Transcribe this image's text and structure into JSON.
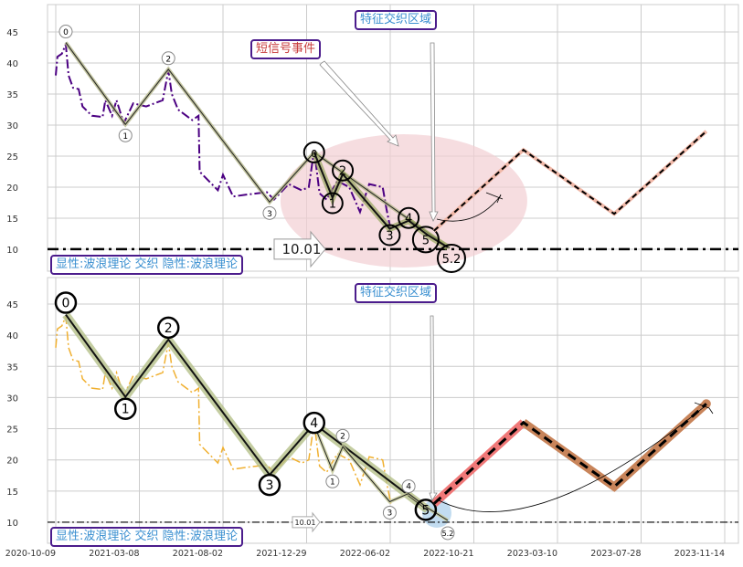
{
  "chart_data": [
    {
      "type": "line",
      "panel": "top",
      "ylim": [
        7,
        49
      ],
      "yticks": [
        10,
        15,
        20,
        25,
        30,
        35,
        40,
        45
      ],
      "grid": true,
      "colors": {
        "price": "#4b0082",
        "wave_band": "#b5b88a",
        "projection": "#f0b8a8",
        "zone": "#f2cfd3"
      },
      "price": [
        [
          "2020-10-09",
          38
        ],
        [
          "2020-10-12",
          41
        ],
        [
          "2020-10-20",
          41.5
        ],
        [
          "2020-10-27",
          43
        ],
        [
          "2020-11-01",
          38
        ],
        [
          "2020-11-09",
          36
        ],
        [
          "2020-11-19",
          35.8
        ],
        [
          "2020-11-26",
          33
        ],
        [
          "2020-12-13",
          31.5
        ],
        [
          "2021-01-01",
          31.3
        ],
        [
          "2021-01-06",
          34
        ],
        [
          "2021-01-18",
          31.5
        ],
        [
          "2021-01-26",
          34
        ],
        [
          "2021-02-08",
          30.3
        ],
        [
          "2021-02-25",
          33.5
        ],
        [
          "2021-03-20",
          33
        ],
        [
          "2021-04-18",
          34
        ],
        [
          "2021-04-28",
          38.8
        ],
        [
          "2021-05-04",
          35
        ],
        [
          "2021-05-15",
          32.5
        ],
        [
          "2021-06-09",
          30.8
        ],
        [
          "2021-06-20",
          31.5
        ],
        [
          "2021-06-22",
          22.5
        ],
        [
          "2021-07-08",
          21
        ],
        [
          "2021-07-24",
          19.5
        ],
        [
          "2021-08-02",
          22
        ],
        [
          "2021-08-20",
          18.5
        ],
        [
          "2021-09-13",
          18.8
        ],
        [
          "2021-10-19",
          19.2
        ],
        [
          "2021-11-01",
          18
        ],
        [
          "2021-11-27",
          20.5
        ],
        [
          "2021-12-20",
          19.5
        ],
        [
          "2022-01-02",
          20
        ],
        [
          "2022-01-12",
          26
        ],
        [
          "2022-01-22",
          19
        ],
        [
          "2022-02-04",
          18
        ],
        [
          "2022-02-24",
          21
        ],
        [
          "2022-03-18",
          20
        ],
        [
          "2022-04-07",
          16
        ],
        [
          "2022-04-24",
          20.5
        ],
        [
          "2022-05-19",
          20
        ],
        [
          "2022-05-26",
          16.5
        ],
        [
          "2022-06-03",
          13
        ]
      ],
      "wave_main": [
        [
          "2020-10-27",
          43.3,
          "0"
        ],
        [
          "2021-02-11",
          30.1,
          "1"
        ],
        [
          "2021-04-28",
          39,
          "2"
        ],
        [
          "2021-10-24",
          17.6,
          "3"
        ],
        [
          "2022-01-12",
          25.6,
          ""
        ],
        [
          "2022-09-10",
          10.2,
          ""
        ]
      ],
      "wave_sub": [
        [
          "2022-01-12",
          25.6,
          "0"
        ],
        [
          "2022-02-15",
          18.3,
          "1"
        ],
        [
          "2022-03-06",
          22.1,
          "2"
        ],
        [
          "2022-06-01",
          13.3,
          "3"
        ],
        [
          "2022-07-03",
          14.6,
          "4"
        ],
        [
          "2022-08-04",
          12.3,
          "5"
        ],
        [
          "2022-09-07",
          10.3,
          "5.2"
        ]
      ],
      "projection": [
        [
          "2022-08-15",
          13
        ],
        [
          "2023-01-12",
          26
        ],
        [
          "2023-06-13",
          15.7
        ],
        [
          "2023-10-21",
          29
        ]
      ],
      "hline": 10.01,
      "hline_label": "10.01",
      "zone_center": [
        "2022-06-25",
        17.8
      ],
      "annotations": {
        "zone": "特征交织区域",
        "signal": "短信号事件",
        "legend": "显性:波浪理论 交织 隐性:波浪理论"
      }
    },
    {
      "type": "line",
      "panel": "bottom",
      "ylim": [
        7,
        49
      ],
      "yticks": [
        10,
        15,
        20,
        25,
        30,
        35,
        40,
        45
      ],
      "xticks": [
        "2020-10-09",
        "2021-03-08",
        "2021-08-02",
        "2021-12-29",
        "2022-06-02",
        "2022-10-21",
        "2023-03-10",
        "2023-07-28",
        "2023-11-14"
      ],
      "grid": true,
      "colors": {
        "price": "#f0b030",
        "wave_band": "#b5c08a",
        "projection_up": "#f07878",
        "projection_down": "#c8845a",
        "glow": "#a8cdea"
      },
      "wave_main": [
        [
          "2020-10-27",
          43.3,
          "0"
        ],
        [
          "2021-02-11",
          30.1,
          "1"
        ],
        [
          "2021-04-28",
          39.3,
          "2"
        ],
        [
          "2021-10-24",
          17.6,
          "3"
        ],
        [
          "2022-01-12",
          25.8,
          "4"
        ],
        [
          "2022-08-04",
          12,
          "5"
        ]
      ],
      "wave_sub": [
        [
          "2022-01-12",
          25.6,
          ""
        ],
        [
          "2022-02-15",
          18.3,
          "1"
        ],
        [
          "2022-03-06",
          22.1,
          "2"
        ],
        [
          "2022-06-01",
          13.3,
          "3"
        ],
        [
          "2022-07-03",
          14.6,
          "4"
        ],
        [
          "2022-08-04",
          12.3,
          ""
        ],
        [
          "2022-09-07",
          10.3,
          "5.2"
        ]
      ],
      "projection": [
        [
          "2022-08-15",
          13
        ],
        [
          "2023-01-12",
          26
        ],
        [
          "2023-06-13",
          15.7
        ],
        [
          "2023-10-21",
          29
        ]
      ],
      "hline": 10.01,
      "hline_label": "10.01",
      "annotations": {
        "zone": "特征交织区域",
        "legend": "显性:波浪理论 交织 隐性:波浪理论"
      }
    }
  ]
}
